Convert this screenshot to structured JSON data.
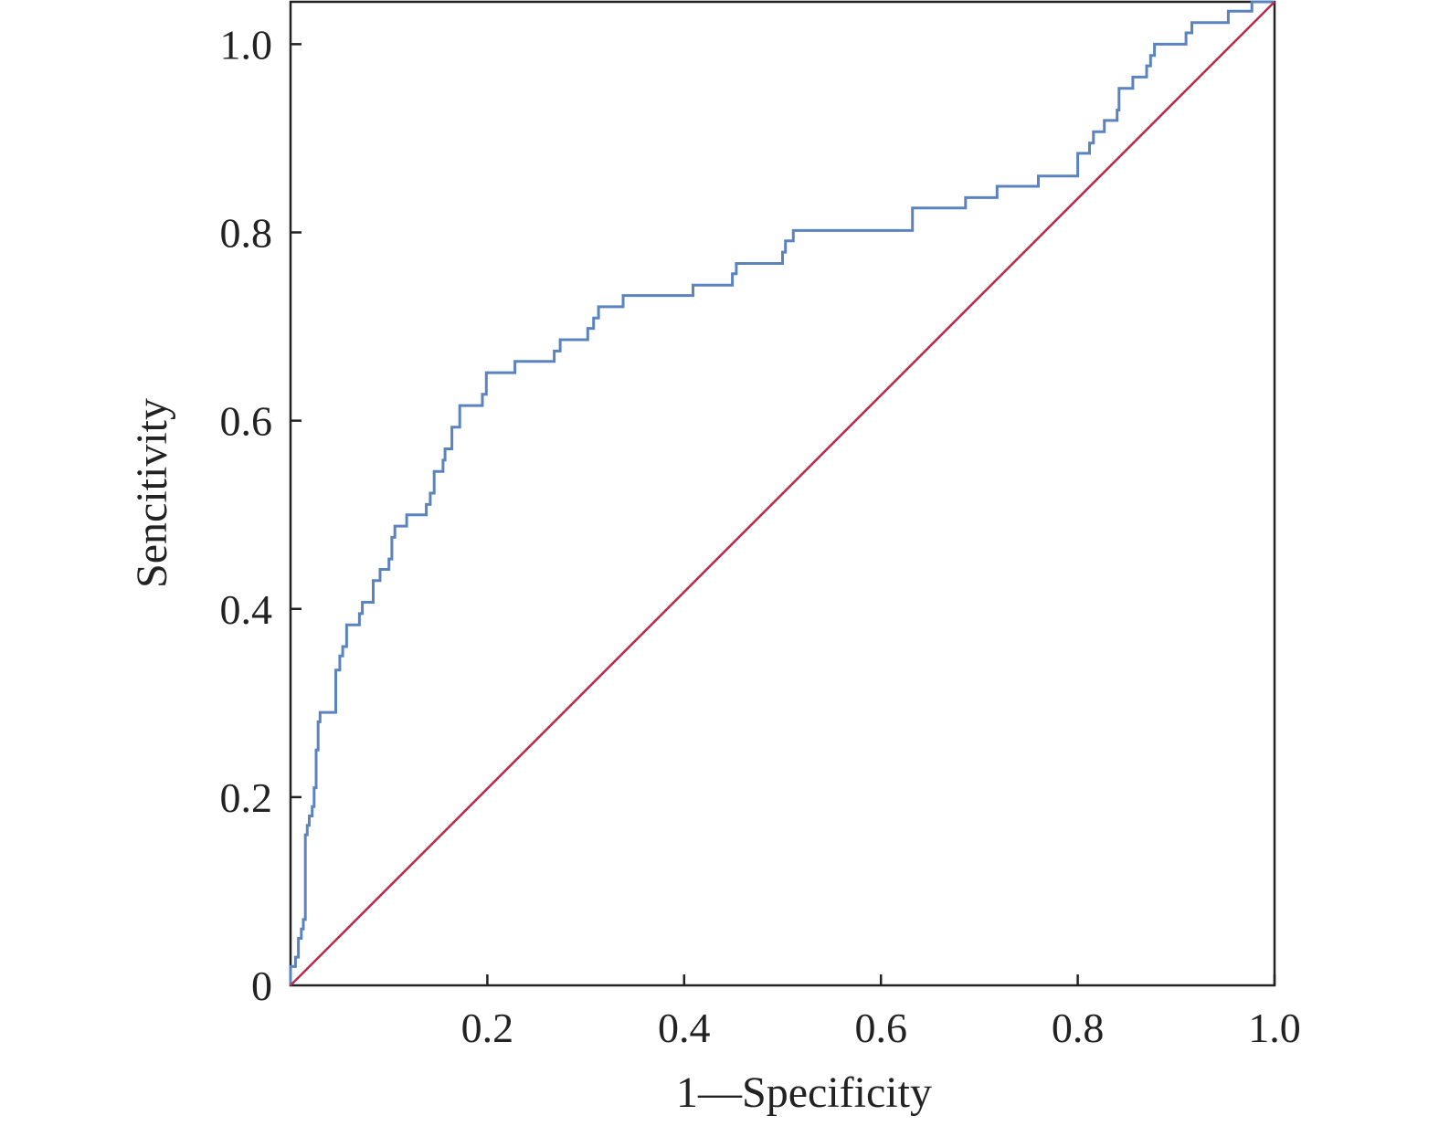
{
  "chart_data": {
    "type": "line",
    "title": "",
    "xlabel": "1—Specificity",
    "ylabel": "Sencitivity",
    "xlim": [
      0,
      1.0
    ],
    "ylim": [
      0,
      1.045
    ],
    "grid": false,
    "legend": "none",
    "x_ticks": [
      {
        "value": 0.2,
        "label": "0.2"
      },
      {
        "value": 0.4,
        "label": "0.4"
      },
      {
        "value": 0.6,
        "label": "0.6"
      },
      {
        "value": 0.8,
        "label": "0.8"
      },
      {
        "value": 1.0,
        "label": "1.0"
      }
    ],
    "y_ticks": [
      {
        "value": 0,
        "label": "0"
      },
      {
        "value": 0.2,
        "label": "0.2"
      },
      {
        "value": 0.4,
        "label": "0.4"
      },
      {
        "value": 0.6,
        "label": "0.6"
      },
      {
        "value": 0.8,
        "label": "0.8"
      },
      {
        "value": 1.0,
        "label": "1.0"
      }
    ],
    "series": [
      {
        "color": "#5b84be",
        "style": "step",
        "points": [
          [
            0,
            0
          ],
          [
            0,
            0.02
          ],
          [
            0.005,
            0.02
          ],
          [
            0.005,
            0.03
          ],
          [
            0.008,
            0.03
          ],
          [
            0.008,
            0.05
          ],
          [
            0.011,
            0.05
          ],
          [
            0.011,
            0.06
          ],
          [
            0.013,
            0.06
          ],
          [
            0.013,
            0.07
          ],
          [
            0.015,
            0.07
          ],
          [
            0.015,
            0.16
          ],
          [
            0.017,
            0.16
          ],
          [
            0.017,
            0.17
          ],
          [
            0.019,
            0.17
          ],
          [
            0.019,
            0.18
          ],
          [
            0.022,
            0.18
          ],
          [
            0.022,
            0.19
          ],
          [
            0.024,
            0.19
          ],
          [
            0.024,
            0.21
          ],
          [
            0.026,
            0.21
          ],
          [
            0.026,
            0.25
          ],
          [
            0.028,
            0.25
          ],
          [
            0.028,
            0.28
          ],
          [
            0.03,
            0.28
          ],
          [
            0.03,
            0.29
          ],
          [
            0.046,
            0.29
          ],
          [
            0.046,
            0.335
          ],
          [
            0.05,
            0.335
          ],
          [
            0.05,
            0.35
          ],
          [
            0.053,
            0.35
          ],
          [
            0.053,
            0.36
          ],
          [
            0.057,
            0.36
          ],
          [
            0.057,
            0.383
          ],
          [
            0.07,
            0.383
          ],
          [
            0.07,
            0.395
          ],
          [
            0.073,
            0.395
          ],
          [
            0.073,
            0.407
          ],
          [
            0.084,
            0.407
          ],
          [
            0.084,
            0.43
          ],
          [
            0.091,
            0.43
          ],
          [
            0.091,
            0.442
          ],
          [
            0.1,
            0.442
          ],
          [
            0.1,
            0.453
          ],
          [
            0.103,
            0.453
          ],
          [
            0.103,
            0.476
          ],
          [
            0.106,
            0.476
          ],
          [
            0.106,
            0.488
          ],
          [
            0.118,
            0.488
          ],
          [
            0.118,
            0.5
          ],
          [
            0.138,
            0.5
          ],
          [
            0.138,
            0.511
          ],
          [
            0.142,
            0.511
          ],
          [
            0.142,
            0.523
          ],
          [
            0.146,
            0.523
          ],
          [
            0.146,
            0.546
          ],
          [
            0.155,
            0.546
          ],
          [
            0.155,
            0.558
          ],
          [
            0.157,
            0.558
          ],
          [
            0.157,
            0.57
          ],
          [
            0.164,
            0.57
          ],
          [
            0.164,
            0.593
          ],
          [
            0.172,
            0.593
          ],
          [
            0.172,
            0.616
          ],
          [
            0.195,
            0.616
          ],
          [
            0.195,
            0.628
          ],
          [
            0.199,
            0.628
          ],
          [
            0.199,
            0.651
          ],
          [
            0.228,
            0.651
          ],
          [
            0.228,
            0.663
          ],
          [
            0.268,
            0.663
          ],
          [
            0.268,
            0.674
          ],
          [
            0.274,
            0.674
          ],
          [
            0.274,
            0.686
          ],
          [
            0.302,
            0.686
          ],
          [
            0.302,
            0.698
          ],
          [
            0.308,
            0.698
          ],
          [
            0.308,
            0.709
          ],
          [
            0.313,
            0.709
          ],
          [
            0.313,
            0.721
          ],
          [
            0.338,
            0.721
          ],
          [
            0.338,
            0.733
          ],
          [
            0.409,
            0.733
          ],
          [
            0.409,
            0.744
          ],
          [
            0.449,
            0.744
          ],
          [
            0.449,
            0.756
          ],
          [
            0.453,
            0.756
          ],
          [
            0.453,
            0.767
          ],
          [
            0.5,
            0.767
          ],
          [
            0.5,
            0.779
          ],
          [
            0.503,
            0.779
          ],
          [
            0.503,
            0.791
          ],
          [
            0.511,
            0.791
          ],
          [
            0.511,
            0.802
          ],
          [
            0.632,
            0.802
          ],
          [
            0.632,
            0.826
          ],
          [
            0.686,
            0.826
          ],
          [
            0.686,
            0.837
          ],
          [
            0.718,
            0.837
          ],
          [
            0.718,
            0.849
          ],
          [
            0.76,
            0.849
          ],
          [
            0.76,
            0.86
          ],
          [
            0.8,
            0.86
          ],
          [
            0.8,
            0.884
          ],
          [
            0.812,
            0.884
          ],
          [
            0.812,
            0.895
          ],
          [
            0.816,
            0.895
          ],
          [
            0.816,
            0.907
          ],
          [
            0.827,
            0.907
          ],
          [
            0.827,
            0.919
          ],
          [
            0.84,
            0.919
          ],
          [
            0.84,
            0.93
          ],
          [
            0.842,
            0.93
          ],
          [
            0.842,
            0.953
          ],
          [
            0.856,
            0.953
          ],
          [
            0.856,
            0.965
          ],
          [
            0.87,
            0.965
          ],
          [
            0.87,
            0.977
          ],
          [
            0.874,
            0.977
          ],
          [
            0.874,
            0.988
          ],
          [
            0.878,
            0.988
          ],
          [
            0.878,
            1.0
          ],
          [
            0.91,
            1.0
          ],
          [
            0.91,
            1.012
          ],
          [
            0.916,
            1.012
          ],
          [
            0.916,
            1.023
          ],
          [
            0.953,
            1.023
          ],
          [
            0.953,
            1.035
          ],
          [
            0.977,
            1.035
          ],
          [
            0.977,
            1.045
          ],
          [
            1.0,
            1.045
          ]
        ]
      },
      {
        "color": "#b5304f",
        "style": "line",
        "points": [
          [
            0,
            0
          ],
          [
            1.0,
            1.045
          ]
        ]
      }
    ]
  }
}
